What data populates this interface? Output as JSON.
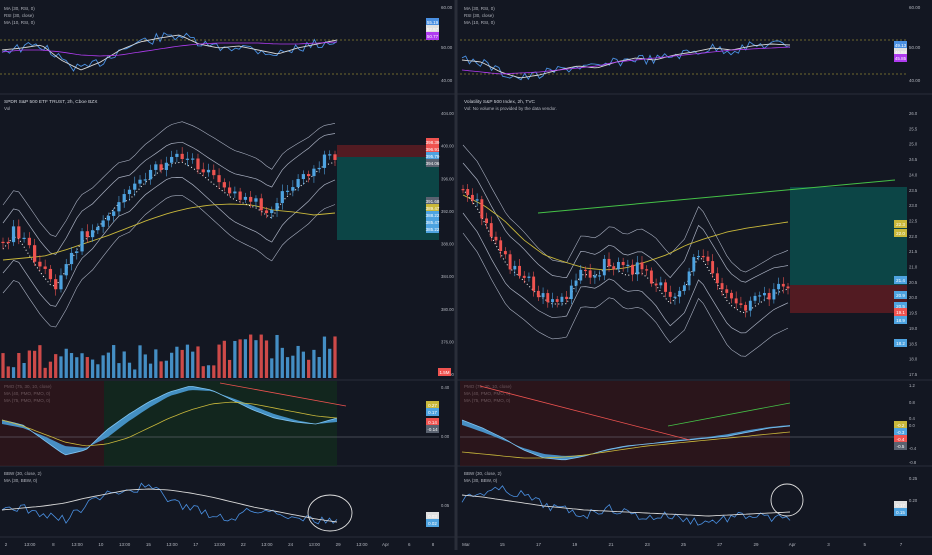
{
  "left": {
    "rsi": {
      "labels": [
        "MA (30, RSI, 0)",
        "RSI (30, close)",
        "MA (10, RSI, 0)"
      ],
      "ticks": [
        "60.00",
        "50.00",
        "40.00"
      ],
      "badges": [
        "55.19",
        "52.57",
        "50.77"
      ]
    },
    "main": {
      "title": "SPDR S&P 500 ETF TRUST, 2h, Cboe BZX",
      "sub": "Vol",
      "ticks": [
        "404.00",
        "400.00",
        "396.00",
        "392.00",
        "388.00",
        "384.00",
        "380.00",
        "376.00",
        "372.00"
      ],
      "badges": [
        "398.39",
        "396.91",
        "395.79",
        "394.06",
        "391.68",
        "389.47",
        "388.22",
        "385.47",
        "385.22"
      ],
      "vol_badge": "1.5M"
    },
    "pmo": {
      "labels": [
        "PMO (75, 30, 10, close)",
        "MA (40, PMO, PMO, 0)",
        "MA (75, PMO, PMO, 0)"
      ],
      "ticks": [
        "0.40",
        "0.00"
      ],
      "badges": [
        "0.27",
        "0.17",
        "0.14",
        "-0.14"
      ]
    },
    "bbw": {
      "labels": [
        "BBW (30, close, 2)",
        "MA (30, BBW, 0)"
      ],
      "ticks": [
        "0.05"
      ],
      "badges": [
        "0.03",
        "0.02"
      ]
    },
    "xaxis": [
      "2",
      "13:00",
      "8",
      "13:00",
      "10",
      "13:00",
      "15",
      "13:00",
      "17",
      "13:00",
      "22",
      "13:00",
      "24",
      "13:00",
      "29",
      "13:00",
      "Apr",
      "6",
      "8"
    ]
  },
  "right": {
    "rsi": {
      "labels": [
        "MA (30, RSI, 0)",
        "RSI (30, close)",
        "MA (10, RSI, 0)"
      ],
      "ticks": [
        "60.00",
        "50.00",
        "40.00"
      ],
      "badges": [
        "49.13",
        "46.84",
        "45.85"
      ]
    },
    "main": {
      "title": "Volatility S&P 500 Index, 2h, TVC",
      "sub": "Vol: No volume is provided by the data vendor.",
      "ticks": [
        "26.0",
        "25.5",
        "25.0",
        "24.5",
        "24.0",
        "23.5",
        "23.0",
        "22.5",
        "22.0",
        "21.5",
        "21.0",
        "20.5",
        "20.0",
        "19.5",
        "19.0",
        "18.5",
        "18.0",
        "17.5"
      ],
      "badges": [
        "22.3",
        "22.0",
        "21.4",
        "20.9",
        "20.5",
        "19.1",
        "18.9",
        "18.2"
      ]
    },
    "pmo": {
      "labels": [
        "PMO (75, 30, 10, close)",
        "MA (40, PMO, PMO, 0)",
        "MA (75, PMO, PMO, 0)"
      ],
      "ticks": [
        "1.2",
        "0.8",
        "0.4",
        "0.0",
        "-0.4",
        "-0.8"
      ],
      "badges": [
        "-0.2",
        "-0.3",
        "-0.4",
        "-0.5"
      ]
    },
    "bbw": {
      "labels": [
        "BBW (30, close, 2)",
        "MA (30, BBW, 0)"
      ],
      "ticks": [
        "0.25",
        "0.20"
      ],
      "badges": [
        "0.17",
        "0.15"
      ]
    },
    "xaxis": [
      "Mar",
      "15",
      "17",
      "19",
      "21",
      "23",
      "25",
      "27",
      "29",
      "Apr",
      "3",
      "5",
      "7"
    ]
  },
  "colors": {
    "background": "#131722",
    "up": "#4ea3e0",
    "down": "#ef5350",
    "grid": "#2a2e39",
    "text": "#b2b5be",
    "rsi": "#4a90e2",
    "ma_purple": "#b03cf0",
    "bb": "#a8afc0",
    "ma_yellow": "#c9b83b",
    "trend_green": "#45c247",
    "trend_red": "#ef5350",
    "profit_zone": "#0c4a4a",
    "loss_zone": "#5a1c22"
  }
}
